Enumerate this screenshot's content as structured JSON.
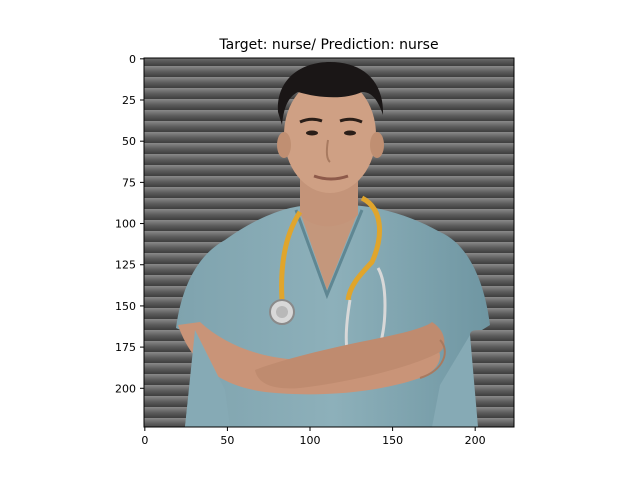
{
  "figure": {
    "title": "Target: nurse/ Prediction: nurse",
    "x_ticks": [
      "0",
      "50",
      "100",
      "150",
      "200"
    ],
    "y_ticks": [
      "0",
      "25",
      "50",
      "75",
      "100",
      "125",
      "150",
      "175",
      "200"
    ],
    "xlim": [
      -0.5,
      223.5
    ],
    "ylim": [
      223.5,
      -0.5
    ],
    "x_tick_values": [
      0,
      50,
      100,
      150,
      200
    ],
    "y_tick_values": [
      0,
      25,
      50,
      75,
      100,
      125,
      150,
      175,
      200
    ]
  },
  "image": {
    "subject": "nurse-photo",
    "colors": {
      "background": "#6b6b6b",
      "shutter_dark": "#4a4a4a",
      "shutter_light": "#8a8a8a",
      "scrubs": "#86aab5",
      "scrubs_shadow": "#5f8793",
      "skin": "#c89a7e",
      "skin_shadow": "#a87a60",
      "hair": "#1a1616",
      "stethoscope": "#e0a52c",
      "stethoscope_metal": "#d8d8d8"
    }
  }
}
